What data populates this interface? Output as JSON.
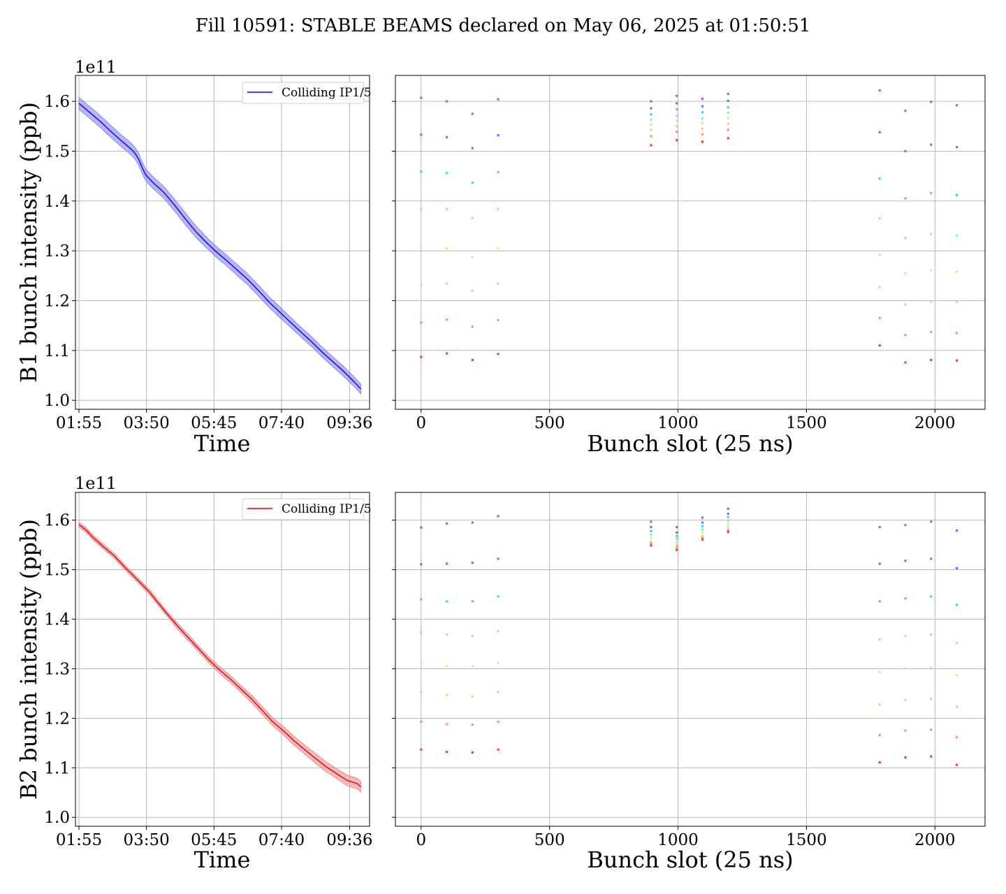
{
  "figure": {
    "title": "Fill 10591: STABLE BEAMS declared on May 06, 2025 at 01:50:51"
  },
  "colors": {
    "b1_line": "#0000ee",
    "b1_band": "#7b7bf0",
    "b2_line": "#dd0000",
    "b2_band": "#f08080",
    "grid": "#b0b0b0",
    "axes": "#000000"
  },
  "chart_data": [
    {
      "id": "b1-time",
      "type": "line",
      "xlabel": "Time",
      "ylabel": "B1 bunch intensity (ppb)",
      "y_offset_text": "1e11",
      "xlim": [
        -0.1,
        8.25
      ],
      "ylim": [
        0.982,
        1.652
      ],
      "xticks": [
        0,
        1.9167,
        3.8333,
        5.75,
        7.6833
      ],
      "xtick_labels": [
        "01:55",
        "03:50",
        "05:45",
        "07:40",
        "09:36"
      ],
      "yticks": [
        1.0,
        1.1,
        1.2,
        1.3,
        1.4,
        1.5,
        1.6
      ],
      "ytick_labels": [
        "1.0",
        "1.1",
        "1.2",
        "1.3",
        "1.4",
        "1.5",
        "1.6"
      ],
      "grid": true,
      "legend": {
        "location": "upper right",
        "entries": [
          "Colliding IP1/5"
        ]
      },
      "series": [
        {
          "name": "Colliding IP1/5",
          "x": [
            0,
            0.3,
            0.6,
            0.9,
            1.2,
            1.5,
            1.6,
            1.7,
            1.8,
            1.9,
            2.1,
            2.4,
            2.7,
            3.0,
            3.3,
            3.6,
            3.9,
            4.2,
            4.5,
            4.8,
            5.1,
            5.4,
            5.7,
            6.0,
            6.3,
            6.6,
            6.9,
            7.2,
            7.5,
            7.8,
            8.0
          ],
          "values": [
            1.596,
            1.578,
            1.56,
            1.54,
            1.521,
            1.503,
            1.495,
            1.483,
            1.466,
            1.452,
            1.437,
            1.418,
            1.393,
            1.366,
            1.34,
            1.318,
            1.298,
            1.28,
            1.261,
            1.242,
            1.22,
            1.197,
            1.177,
            1.157,
            1.137,
            1.118,
            1.097,
            1.078,
            1.059,
            1.038,
            1.023
          ],
          "band_halfwidth": [
            0.012,
            0.012,
            0.012,
            0.012,
            0.012,
            0.012,
            0.012,
            0.012,
            0.012,
            0.012,
            0.012,
            0.012,
            0.012,
            0.012,
            0.012,
            0.011,
            0.011,
            0.011,
            0.011,
            0.011,
            0.011,
            0.011,
            0.011,
            0.01,
            0.01,
            0.01,
            0.01,
            0.01,
            0.01,
            0.01,
            0.01
          ]
        }
      ]
    },
    {
      "id": "b1-slots",
      "type": "scatter",
      "xlabel": "Bunch slot (25 ns)",
      "xlim": [
        -100,
        2195
      ],
      "ylim": [
        0.982,
        1.652
      ],
      "xticks": [
        0,
        500,
        1000,
        1500,
        2000
      ],
      "xtick_labels": [
        "0",
        "500",
        "1000",
        "1500",
        "2000"
      ],
      "yticks": [
        1.0,
        1.1,
        1.2,
        1.3,
        1.4,
        1.5,
        1.6
      ],
      "grid": true,
      "series": [
        {
          "x": 0,
          "values": [
            1.607,
            1.533,
            1.459,
            1.384,
            1.306,
            1.231,
            1.156,
            1.087
          ]
        },
        {
          "x": 100,
          "values": [
            1.6,
            1.528,
            1.456,
            1.384,
            1.305,
            1.234,
            1.162,
            1.094
          ]
        },
        {
          "x": 200,
          "values": [
            1.575,
            1.506,
            1.437,
            1.366,
            1.288,
            1.22,
            1.148,
            1.081
          ]
        },
        {
          "x": 300,
          "values": [
            1.604,
            1.532,
            1.458,
            1.384,
            1.305,
            1.234,
            1.161,
            1.093
          ]
        },
        {
          "x": 895,
          "values": [
            1.6,
            1.586,
            1.574,
            1.563,
            1.553,
            1.543,
            1.53,
            1.512
          ]
        },
        {
          "x": 995,
          "values": [
            1.611,
            1.596,
            1.584,
            1.571,
            1.561,
            1.55,
            1.539,
            1.522
          ]
        },
        {
          "x": 1095,
          "values": [
            1.605,
            1.59,
            1.578,
            1.566,
            1.556,
            1.545,
            1.534,
            1.519
          ]
        },
        {
          "x": 1195,
          "values": [
            1.615,
            1.601,
            1.588,
            1.577,
            1.566,
            1.555,
            1.543,
            1.526
          ]
        },
        {
          "x": 1785,
          "values": [
            1.622,
            1.538,
            1.445,
            1.365,
            1.292,
            1.227,
            1.165,
            1.11
          ]
        },
        {
          "x": 1885,
          "values": [
            1.581,
            1.5,
            1.405,
            1.326,
            1.255,
            1.192,
            1.131,
            1.076
          ]
        },
        {
          "x": 1985,
          "values": [
            1.599,
            1.513,
            1.416,
            1.334,
            1.261,
            1.198,
            1.137,
            1.081
          ]
        },
        {
          "x": 2085,
          "values": [
            1.592,
            1.508,
            1.412,
            1.331,
            1.258,
            1.197,
            1.135,
            1.08
          ]
        }
      ]
    },
    {
      "id": "b2-time",
      "type": "line",
      "xlabel": "Time",
      "ylabel": "B2 bunch intensity (ppb)",
      "y_offset_text": "1e11",
      "xlim": [
        -0.1,
        8.25
      ],
      "ylim": [
        0.982,
        1.656
      ],
      "xticks": [
        0,
        1.9167,
        3.8333,
        5.75,
        7.6833
      ],
      "xtick_labels": [
        "01:55",
        "03:50",
        "05:45",
        "07:40",
        "09:36"
      ],
      "yticks": [
        1.0,
        1.1,
        1.2,
        1.3,
        1.4,
        1.5,
        1.6
      ],
      "ytick_labels": [
        "1.0",
        "1.1",
        "1.2",
        "1.3",
        "1.4",
        "1.5",
        "1.6"
      ],
      "grid": true,
      "legend": {
        "location": "upper right",
        "entries": [
          "Colliding IP1/5"
        ]
      },
      "series": [
        {
          "name": "Colliding IP1/5",
          "x": [
            0,
            0.2,
            0.4,
            0.7,
            1.0,
            1.3,
            1.6,
            1.9,
            2.0,
            2.2,
            2.5,
            2.8,
            3.1,
            3.4,
            3.7,
            4.0,
            4.3,
            4.6,
            4.9,
            5.2,
            5.5,
            5.8,
            6.1,
            6.4,
            6.7,
            7.0,
            7.3,
            7.6,
            7.9,
            8.0
          ],
          "values": [
            1.591,
            1.58,
            1.565,
            1.546,
            1.528,
            1.505,
            1.484,
            1.462,
            1.455,
            1.437,
            1.411,
            1.386,
            1.363,
            1.34,
            1.317,
            1.297,
            1.279,
            1.259,
            1.239,
            1.216,
            1.193,
            1.175,
            1.155,
            1.137,
            1.12,
            1.103,
            1.089,
            1.075,
            1.068,
            1.062
          ],
          "band_halfwidth": [
            0.005,
            0.005,
            0.005,
            0.005,
            0.005,
            0.005,
            0.005,
            0.005,
            0.005,
            0.005,
            0.005,
            0.006,
            0.006,
            0.006,
            0.006,
            0.007,
            0.007,
            0.007,
            0.008,
            0.008,
            0.008,
            0.009,
            0.009,
            0.009,
            0.01,
            0.01,
            0.01,
            0.011,
            0.011,
            0.011
          ]
        }
      ]
    },
    {
      "id": "b2-slots",
      "type": "scatter",
      "xlabel": "Bunch slot (25 ns)",
      "xlim": [
        -100,
        2195
      ],
      "ylim": [
        0.982,
        1.656
      ],
      "xticks": [
        0,
        500,
        1000,
        1500,
        2000
      ],
      "xtick_labels": [
        "0",
        "500",
        "1000",
        "1500",
        "2000"
      ],
      "yticks": [
        1.0,
        1.1,
        1.2,
        1.3,
        1.4,
        1.5,
        1.6
      ],
      "grid": true,
      "series": [
        {
          "x": 0,
          "values": [
            1.585,
            1.511,
            1.44,
            1.374,
            1.312,
            1.253,
            1.193,
            1.137
          ]
        },
        {
          "x": 100,
          "values": [
            1.593,
            1.512,
            1.436,
            1.369,
            1.306,
            1.247,
            1.188,
            1.132
          ]
        },
        {
          "x": 200,
          "values": [
            1.595,
            1.514,
            1.436,
            1.366,
            1.305,
            1.244,
            1.187,
            1.131
          ]
        },
        {
          "x": 300,
          "values": [
            1.608,
            1.522,
            1.446,
            1.376,
            1.312,
            1.253,
            1.193,
            1.137
          ]
        },
        {
          "x": 895,
          "values": [
            1.597,
            1.586,
            1.578,
            1.571,
            1.564,
            1.557,
            1.553,
            1.549
          ]
        },
        {
          "x": 995,
          "values": [
            1.586,
            1.575,
            1.568,
            1.562,
            1.556,
            1.55,
            1.545,
            1.54
          ]
        },
        {
          "x": 1095,
          "values": [
            1.605,
            1.595,
            1.588,
            1.581,
            1.574,
            1.568,
            1.564,
            1.561
          ]
        },
        {
          "x": 1195,
          "values": [
            1.623,
            1.613,
            1.606,
            1.599,
            1.592,
            1.586,
            1.58,
            1.576
          ]
        },
        {
          "x": 1785,
          "values": [
            1.586,
            1.512,
            1.436,
            1.359,
            1.293,
            1.228,
            1.166,
            1.111
          ]
        },
        {
          "x": 1885,
          "values": [
            1.59,
            1.518,
            1.442,
            1.366,
            1.301,
            1.237,
            1.175,
            1.121
          ]
        },
        {
          "x": 1985,
          "values": [
            1.597,
            1.522,
            1.446,
            1.369,
            1.303,
            1.239,
            1.177,
            1.123
          ]
        },
        {
          "x": 2085,
          "values": [
            1.579,
            1.503,
            1.429,
            1.352,
            1.287,
            1.223,
            1.162,
            1.106
          ]
        }
      ]
    }
  ],
  "scatter_palette": [
    "#9b4dea",
    "#3f74f3",
    "#38c6e0",
    "#7deec7",
    "#c8ee8a",
    "#f6c47e",
    "#fb8a5e",
    "#ea2f2a"
  ]
}
